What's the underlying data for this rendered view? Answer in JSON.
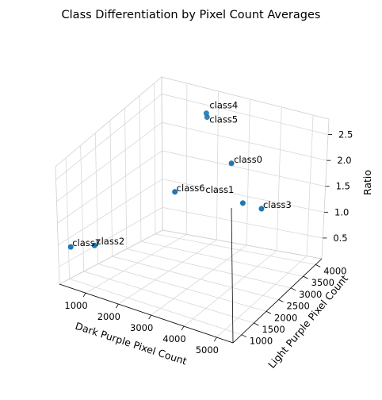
{
  "chart_data": {
    "type": "scatter",
    "projection": "3d",
    "title": "Class Differentiation by Pixel Count Averages",
    "xlabel": "Dark Purple Pixel Count",
    "ylabel": "Light Purple Pixel Count",
    "zlabel": "Ratio",
    "xlim": [
      200,
      5500
    ],
    "ylim": [
      650,
      4250
    ],
    "zlim": [
      0.1,
      2.8
    ],
    "xticks": [
      "1000",
      "2000",
      "3000",
      "4000",
      "5000"
    ],
    "yticks": [
      "1000",
      "1500",
      "2000",
      "2500",
      "3000",
      "3500",
      "4000"
    ],
    "zticks": [
      "0.5",
      "1.0",
      "1.5",
      "2.0",
      "2.5"
    ],
    "grid": true,
    "marker_color": "#1f77b4",
    "points": [
      {
        "label": "class0",
        "x": 3550,
        "y": 2980,
        "z": 2.25
      },
      {
        "label": "class1",
        "x": 3950,
        "y": 2950,
        "z": 1.55
      },
      {
        "label": "class2",
        "x": 1050,
        "y": 950,
        "z": 1.05
      },
      {
        "label": "class3",
        "x": 4500,
        "y": 3000,
        "z": 1.5
      },
      {
        "label": "class4",
        "x": 2250,
        "y": 3550,
        "z": 2.75
      },
      {
        "label": "class5",
        "x": 2300,
        "y": 3520,
        "z": 2.7
      },
      {
        "label": "class6",
        "x": 2200,
        "y": 2500,
        "z": 1.7
      },
      {
        "label": "class7",
        "x": 450,
        "y": 800,
        "z": 0.95
      }
    ]
  }
}
